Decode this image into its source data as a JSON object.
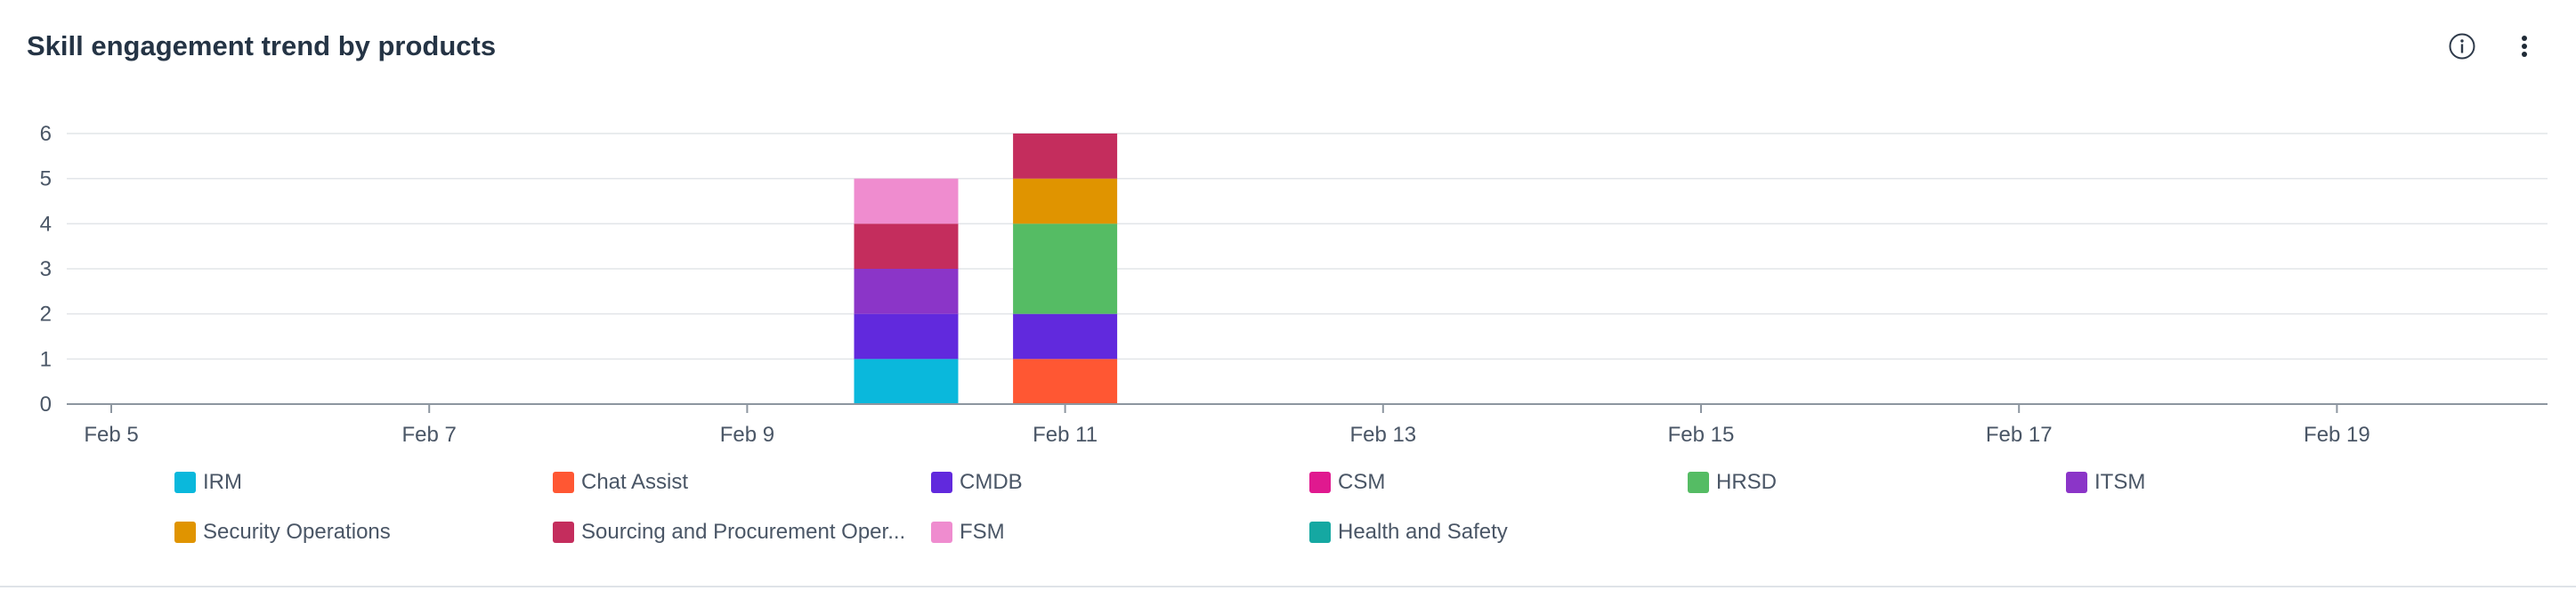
{
  "header": {
    "title": "Skill engagement trend by products",
    "info_icon": "info-icon",
    "menu_icon": "more-vertical-icon"
  },
  "chart_data": {
    "type": "bar",
    "stacked": true,
    "x_ticks": [
      "Feb 5",
      "Feb 7",
      "Feb 9",
      "Feb 11",
      "Feb 13",
      "Feb 15",
      "Feb 17",
      "Feb 19"
    ],
    "x_domain_days": [
      "Feb 5",
      "Feb 20"
    ],
    "y_ticks": [
      0,
      1,
      2,
      3,
      4,
      5,
      6
    ],
    "ylim": [
      0,
      6
    ],
    "grid": true,
    "bars": [
      {
        "x": "Feb 10",
        "stack": [
          {
            "series": "IRM",
            "value": 1
          },
          {
            "series": "CMDB",
            "value": 1
          },
          {
            "series": "ITSM",
            "value": 1
          },
          {
            "series": "Sourcing and Procurement Oper...",
            "value": 1
          },
          {
            "series": "FSM",
            "value": 1
          }
        ]
      },
      {
        "x": "Feb 11",
        "stack": [
          {
            "series": "Chat Assist",
            "value": 1
          },
          {
            "series": "CMDB",
            "value": 1
          },
          {
            "series": "HRSD",
            "value": 2
          },
          {
            "series": "Security Operations",
            "value": 1
          },
          {
            "series": "Sourcing and Procurement Oper...",
            "value": 1
          }
        ]
      }
    ],
    "legend_position": "bottom",
    "series": [
      {
        "name": "IRM",
        "color": "#0ab8dc"
      },
      {
        "name": "Chat Assist",
        "color": "#ff5733"
      },
      {
        "name": "CMDB",
        "color": "#6129dd"
      },
      {
        "name": "CSM",
        "color": "#e0198f"
      },
      {
        "name": "HRSD",
        "color": "#55bc64"
      },
      {
        "name": "ITSM",
        "color": "#8b35c8"
      },
      {
        "name": "Security Operations",
        "color": "#e09400"
      },
      {
        "name": "Sourcing and Procurement Oper...",
        "color": "#c42d5d"
      },
      {
        "name": "FSM",
        "color": "#ef8ccf"
      },
      {
        "name": "Health and Safety",
        "color": "#15a8a2"
      }
    ]
  }
}
